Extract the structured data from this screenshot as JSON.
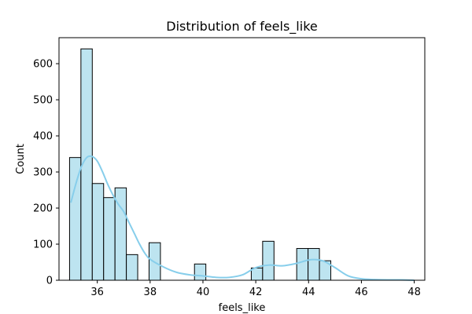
{
  "chart_data": {
    "type": "bar",
    "title": "Distribution of feels_like",
    "xlabel": "feels_like",
    "ylabel": "Count",
    "xlim": [
      34.55,
      48.4
    ],
    "ylim": [
      0,
      672
    ],
    "xticks": [
      36,
      38,
      40,
      42,
      44,
      46,
      48
    ],
    "yticks": [
      0,
      100,
      200,
      300,
      400,
      500,
      600
    ],
    "bar_color": "#bde4f0",
    "bar_edge_color": "#000000",
    "kde_color": "#87ceeb",
    "grid": false,
    "bins": [
      {
        "x0": 34.95,
        "x1": 35.38,
        "count": 340
      },
      {
        "x0": 35.38,
        "x1": 35.81,
        "count": 641
      },
      {
        "x0": 35.81,
        "x1": 36.24,
        "count": 268
      },
      {
        "x0": 36.24,
        "x1": 36.67,
        "count": 229
      },
      {
        "x0": 36.67,
        "x1": 37.1,
        "count": 256
      },
      {
        "x0": 37.1,
        "x1": 37.53,
        "count": 71
      },
      {
        "x0": 37.53,
        "x1": 37.96,
        "count": 0
      },
      {
        "x0": 37.96,
        "x1": 38.39,
        "count": 104
      },
      {
        "x0": 38.39,
        "x1": 38.82,
        "count": 0
      },
      {
        "x0": 38.82,
        "x1": 39.25,
        "count": 0
      },
      {
        "x0": 39.25,
        "x1": 39.68,
        "count": 0
      },
      {
        "x0": 39.68,
        "x1": 40.11,
        "count": 45
      },
      {
        "x0": 40.11,
        "x1": 40.54,
        "count": 0
      },
      {
        "x0": 40.54,
        "x1": 40.97,
        "count": 0
      },
      {
        "x0": 40.97,
        "x1": 41.4,
        "count": 0
      },
      {
        "x0": 41.4,
        "x1": 41.83,
        "count": 0
      },
      {
        "x0": 41.83,
        "x1": 42.26,
        "count": 34
      },
      {
        "x0": 42.26,
        "x1": 42.69,
        "count": 108
      },
      {
        "x0": 42.69,
        "x1": 43.12,
        "count": 0
      },
      {
        "x0": 43.12,
        "x1": 43.55,
        "count": 0
      },
      {
        "x0": 43.55,
        "x1": 43.98,
        "count": 88
      },
      {
        "x0": 43.98,
        "x1": 44.41,
        "count": 88
      },
      {
        "x0": 44.41,
        "x1": 44.84,
        "count": 54
      }
    ],
    "kde": {
      "x": [
        35.0,
        35.2,
        35.4,
        35.6,
        35.8,
        36.0,
        36.2,
        36.4,
        36.6,
        36.8,
        37.0,
        37.2,
        37.4,
        37.6,
        37.8,
        38.0,
        38.5,
        39.0,
        39.5,
        40.0,
        40.5,
        41.0,
        41.5,
        42.0,
        42.5,
        43.0,
        43.5,
        44.0,
        44.3,
        44.6,
        45.0,
        45.5,
        46.0,
        46.5,
        47.0,
        47.5,
        48.0
      ],
      "y": [
        215,
        270,
        315,
        340,
        343,
        330,
        300,
        265,
        235,
        210,
        190,
        160,
        130,
        100,
        75,
        58,
        37,
        22,
        15,
        12,
        8,
        8,
        15,
        35,
        42,
        40,
        46,
        56,
        57,
        52,
        35,
        12,
        4,
        2,
        1,
        1,
        0
      ]
    }
  }
}
